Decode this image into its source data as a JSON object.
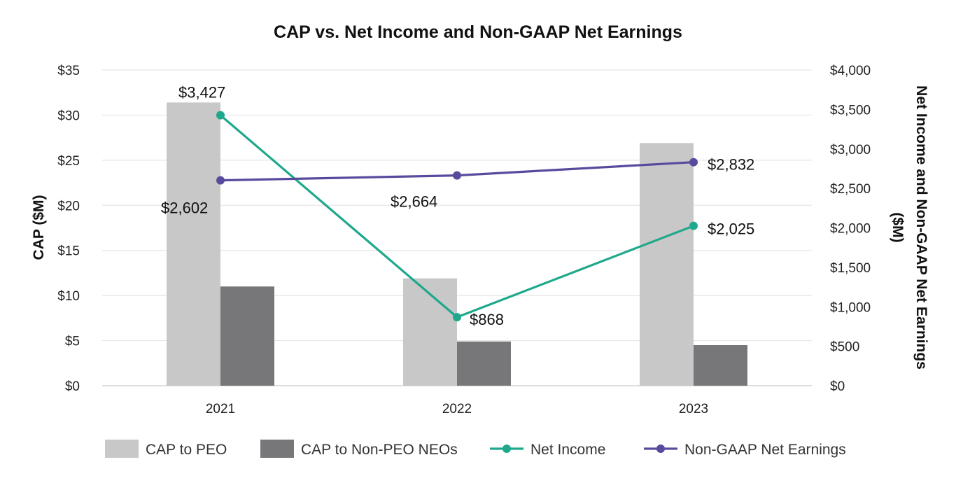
{
  "chart_data": {
    "type": "bar",
    "title": "CAP vs. Net Income and Non-GAAP Net Earnings",
    "categories": [
      "2021",
      "2022",
      "2023"
    ],
    "ylabel": "CAP ($M)",
    "y2label": "Net Income and Non-GAAP Net Earnings ($M)",
    "ylim": [
      0,
      35
    ],
    "y2lim": [
      0,
      4000
    ],
    "yticks": [
      "$0",
      "$5",
      "$10",
      "$15",
      "$20",
      "$25",
      "$30",
      "$35"
    ],
    "y2ticks": [
      "$0",
      "$500",
      "$1,000",
      "$1,500",
      "$2,000",
      "$2,500",
      "$3,000",
      "$3,500",
      "$4,000"
    ],
    "grid": true,
    "legend_position": "bottom",
    "series": [
      {
        "name": "CAP to PEO",
        "type": "bar",
        "axis": "left",
        "color": "#c8c8c9",
        "values": [
          31.4,
          11.9,
          26.9
        ]
      },
      {
        "name": "CAP to Non-PEO NEOs",
        "type": "bar",
        "axis": "left",
        "color": "#77777a",
        "values": [
          11.0,
          4.9,
          4.5
        ]
      },
      {
        "name": "Net Income",
        "type": "line",
        "axis": "right",
        "color": "#1fa88b",
        "values": [
          3427,
          868,
          2025
        ],
        "labels": [
          "$3,427",
          "$868",
          "$2,025"
        ]
      },
      {
        "name": "Non-GAAP Net Earnings",
        "type": "line",
        "axis": "right",
        "color": "#5a4a9e",
        "values": [
          2602,
          2664,
          2832
        ],
        "labels": [
          "$2,602",
          "$2,664",
          "$2,832"
        ]
      }
    ]
  }
}
